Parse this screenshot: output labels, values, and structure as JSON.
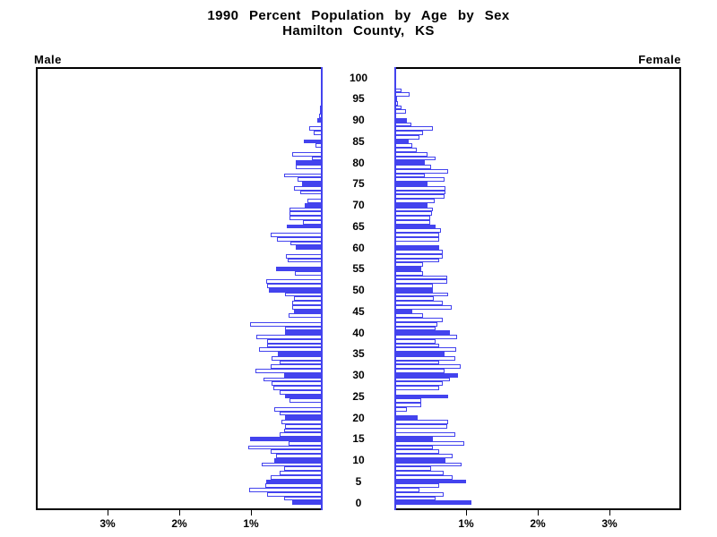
{
  "title": {
    "line1": "1990 Percent Population by Age by Sex",
    "line2": "Hamilton County, KS"
  },
  "panels": {
    "male_label": "Male",
    "female_label": "Female"
  },
  "colors": {
    "bar_blue": "#4343ee",
    "frame_black": "#000000",
    "hollow_fill": "#ffffff"
  },
  "chart_data": {
    "type": "bar",
    "subtype": "population-pyramid",
    "title": "1990 Percent Population by Age by Sex",
    "subtitle": "Hamilton County, KS",
    "orientation": "horizontal, male bars extend left, female bars extend right",
    "age_min": 0,
    "age_max": 100,
    "bar_unit": "single year of age; bars at ages divisible by 5 are solid filled, others hollow outline",
    "age_tick_interval": 5,
    "age_tick_labels": [
      "0",
      "5",
      "10",
      "15",
      "20",
      "25",
      "30",
      "35",
      "40",
      "45",
      "50",
      "55",
      "60",
      "65",
      "70",
      "75",
      "80",
      "85",
      "90",
      "95",
      "100"
    ],
    "x_axis": {
      "unit": "percent of population",
      "side_max_pct": 4,
      "tick_pcts": [
        1,
        2,
        3
      ],
      "male_tick_labels": [
        "1%",
        "2%",
        "3%"
      ],
      "female_tick_labels": [
        "1%",
        "2%",
        "3%"
      ]
    },
    "legend_position": "none",
    "grid": false,
    "series": [
      {
        "name": "Male",
        "side": "left",
        "values_by_age_0_to_100": [
          0.43,
          0.54,
          0.78,
          1.02,
          0.8,
          0.79,
          0.73,
          0.6,
          0.54,
          0.85,
          0.67,
          0.65,
          0.73,
          1.04,
          0.48,
          1.01,
          0.6,
          0.54,
          0.52,
          0.58,
          0.52,
          0.6,
          0.67,
          0,
          0.46,
          0.52,
          0.6,
          0.69,
          0.71,
          0.83,
          0.54,
          0.94,
          0.73,
          0.6,
          0.71,
          0.63,
          0.89,
          0.77,
          0.77,
          0.92,
          0.53,
          0.53,
          1.01,
          0,
          0.48,
          0.4,
          0.42,
          0.42,
          0.4,
          0.52,
          0.75,
          0.78,
          0.79,
          0,
          0.39,
          0.65,
          0,
          0.49,
          0.51,
          0,
          0.38,
          0.45,
          0.64,
          0.72,
          0,
          0.5,
          0.27,
          0.46,
          0.46,
          0.46,
          0.25,
          0.21,
          0,
          0.31,
          0.4,
          0.29,
          0.35,
          0.54,
          0,
          0.37,
          0.38,
          0.15,
          0.42,
          0,
          0.1,
          0.26,
          0,
          0.13,
          0.19,
          0,
          0.08,
          0.05,
          0.04,
          0.04,
          0,
          0,
          0,
          0,
          0,
          0,
          0
        ]
      },
      {
        "name": "Female",
        "side": "right",
        "values_by_age_0_to_100": [
          1.08,
          0.58,
          0.69,
          0.35,
          0.63,
          1.0,
          0.81,
          0.69,
          0.51,
          0.94,
          0.71,
          0.81,
          0.63,
          0.54,
          0.97,
          0.54,
          0.85,
          0,
          0.74,
          0.75,
          0.33,
          0,
          0.17,
          0.37,
          0.38,
          0.75,
          0,
          0.63,
          0.67,
          0.77,
          0.89,
          0.7,
          0.93,
          0.63,
          0.85,
          0.7,
          0.86,
          0.62,
          0.57,
          0.87,
          0.77,
          0.58,
          0.6,
          0.68,
          0.4,
          0.25,
          0.8,
          0.68,
          0.55,
          0.75,
          0.54,
          0.54,
          0.74,
          0.74,
          0.4,
          0.38,
          0.4,
          0.62,
          0.68,
          0.68,
          0.63,
          0,
          0.62,
          0.62,
          0.65,
          0.58,
          0.5,
          0.5,
          0.52,
          0.54,
          0.46,
          0.56,
          0.7,
          0.71,
          0.71,
          0.46,
          0.7,
          0.42,
          0.75,
          0.51,
          0.42,
          0.58,
          0.46,
          0.31,
          0.25,
          0.2,
          0.35,
          0.4,
          0.54,
          0.24,
          0.17,
          0,
          0.16,
          0.1,
          0.05,
          0.04,
          0.21,
          0.1,
          0,
          0,
          0
        ]
      }
    ]
  }
}
